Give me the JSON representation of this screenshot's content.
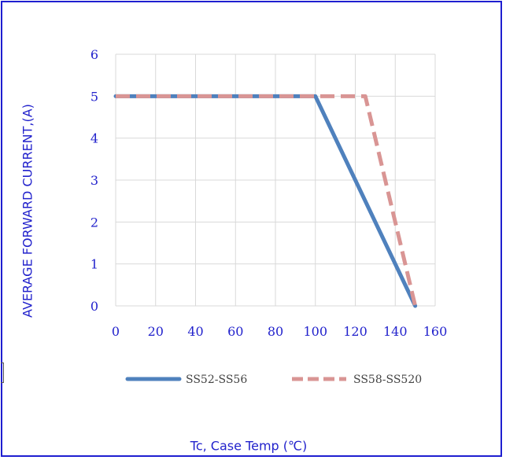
{
  "chart_data": {
    "type": "line",
    "title": "",
    "xlabel": "Tc, Case Temp (℃)",
    "ylabel": "AVERAGE FORWARD CURRENT,(A)",
    "xlim": [
      0,
      160
    ],
    "ylim": [
      0,
      6
    ],
    "x_ticks": [
      "0",
      "20",
      "40",
      "60",
      "80",
      "100",
      "120",
      "140",
      "160"
    ],
    "y_ticks": [
      "0",
      "1",
      "2",
      "3",
      "4",
      "5",
      "6"
    ],
    "grid": true,
    "legend_position": "bottom",
    "series": [
      {
        "name": "SS52-SS56",
        "color": "#4f81bd",
        "style": "solid",
        "x": [
          0,
          100,
          150
        ],
        "y": [
          5,
          5,
          0
        ]
      },
      {
        "name": "SS58-SS520",
        "color": "#d99594",
        "style": "dashed",
        "x": [
          0,
          125,
          150
        ],
        "y": [
          5,
          5,
          0
        ]
      }
    ]
  }
}
